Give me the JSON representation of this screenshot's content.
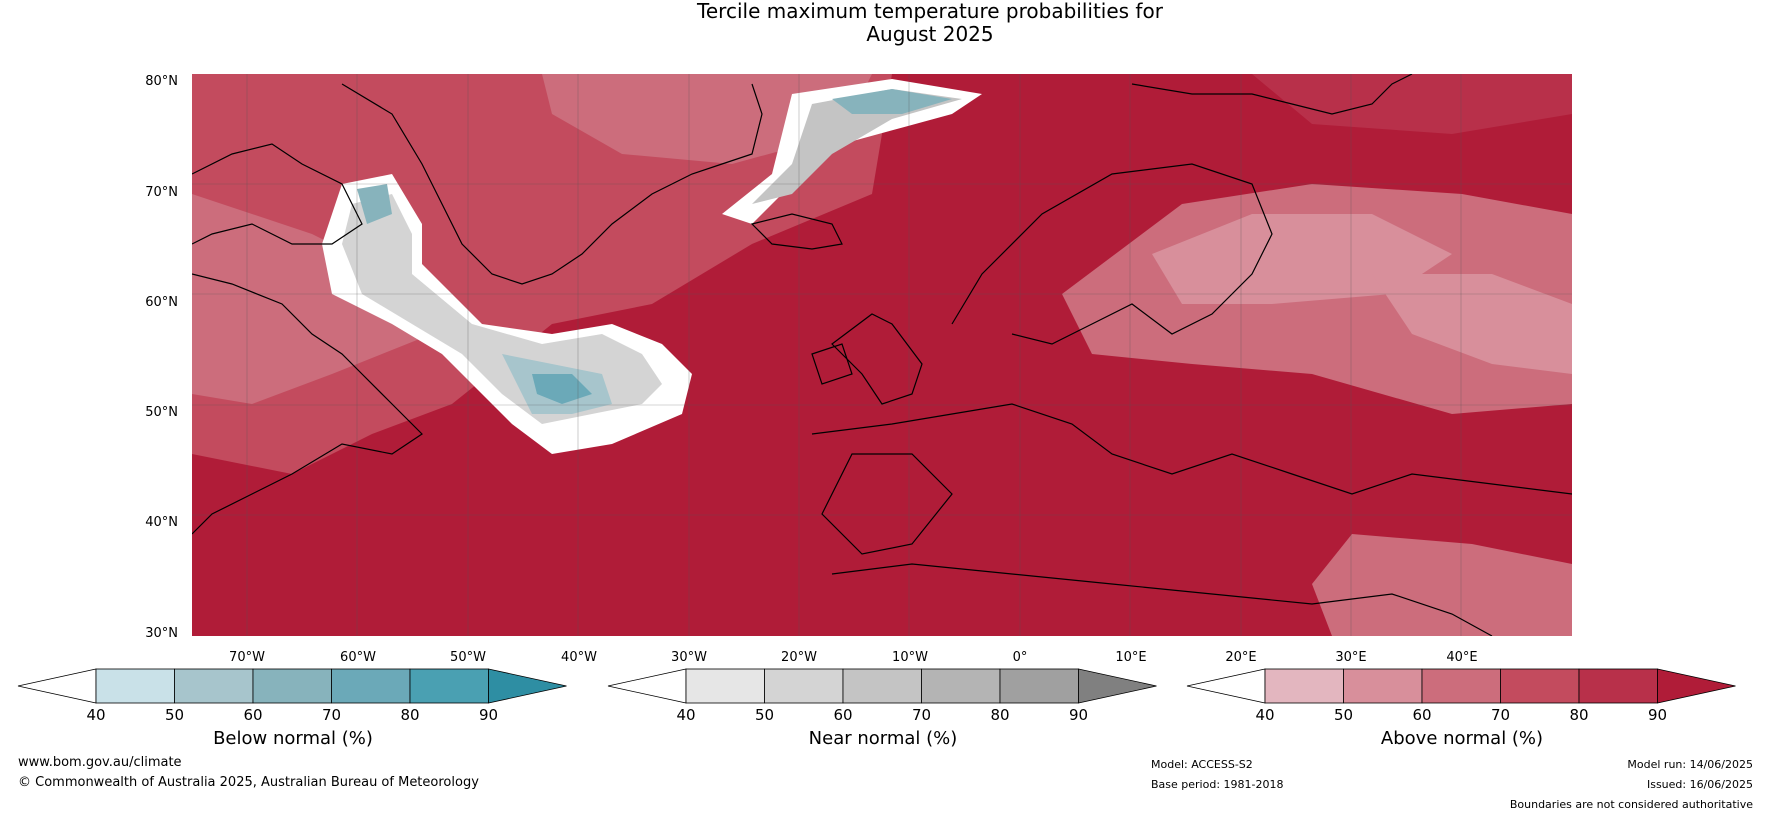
{
  "title_line1": "Tercile maximum temperature probabilities for",
  "title_line2": "August 2025",
  "lat_labels": [
    "80°N",
    "70°N",
    "60°N",
    "50°N",
    "40°N",
    "30°N"
  ],
  "lon_labels": [
    "70°W",
    "60°W",
    "50°W",
    "40°W",
    "30°W",
    "20°W",
    "10°W",
    "0°",
    "10°E",
    "20°E",
    "30°E",
    "40°E"
  ],
  "colorbars": {
    "below": {
      "title": "Below normal (%)",
      "ticks": [
        "40",
        "50",
        "60",
        "70",
        "80",
        "90"
      ],
      "colors": [
        "#ffffff",
        "#c9e1e8",
        "#a7c5cc",
        "#87b3bc",
        "#6ba9b8",
        "#4aa0b2",
        "#2e8ea3"
      ]
    },
    "near": {
      "title": "Near normal (%)",
      "ticks": [
        "40",
        "50",
        "60",
        "70",
        "80",
        "90"
      ],
      "colors": [
        "#ffffff",
        "#e6e6e6",
        "#d4d4d4",
        "#c4c4c4",
        "#b4b4b4",
        "#a0a0a0",
        "#808080"
      ]
    },
    "above": {
      "title": "Above normal (%)",
      "ticks": [
        "40",
        "50",
        "60",
        "70",
        "80",
        "90"
      ],
      "colors": [
        "#ffffff",
        "#e3b6bf",
        "#d88f9b",
        "#cc6d7c",
        "#c34b5e",
        "#b8304a",
        "#b01c38"
      ]
    }
  },
  "footer": {
    "website": "www.bom.gov.au/climate",
    "copyright": "© Commonwealth of Australia 2025, Australian Bureau of Meteorology",
    "model": "Model: ACCESS-S2",
    "base_period": "Base period: 1981-2018",
    "model_run": "Model run: 14/06/2025",
    "issued": "Issued: 16/06/2025",
    "disclaimer": "Boundaries are not considered authoritative"
  }
}
